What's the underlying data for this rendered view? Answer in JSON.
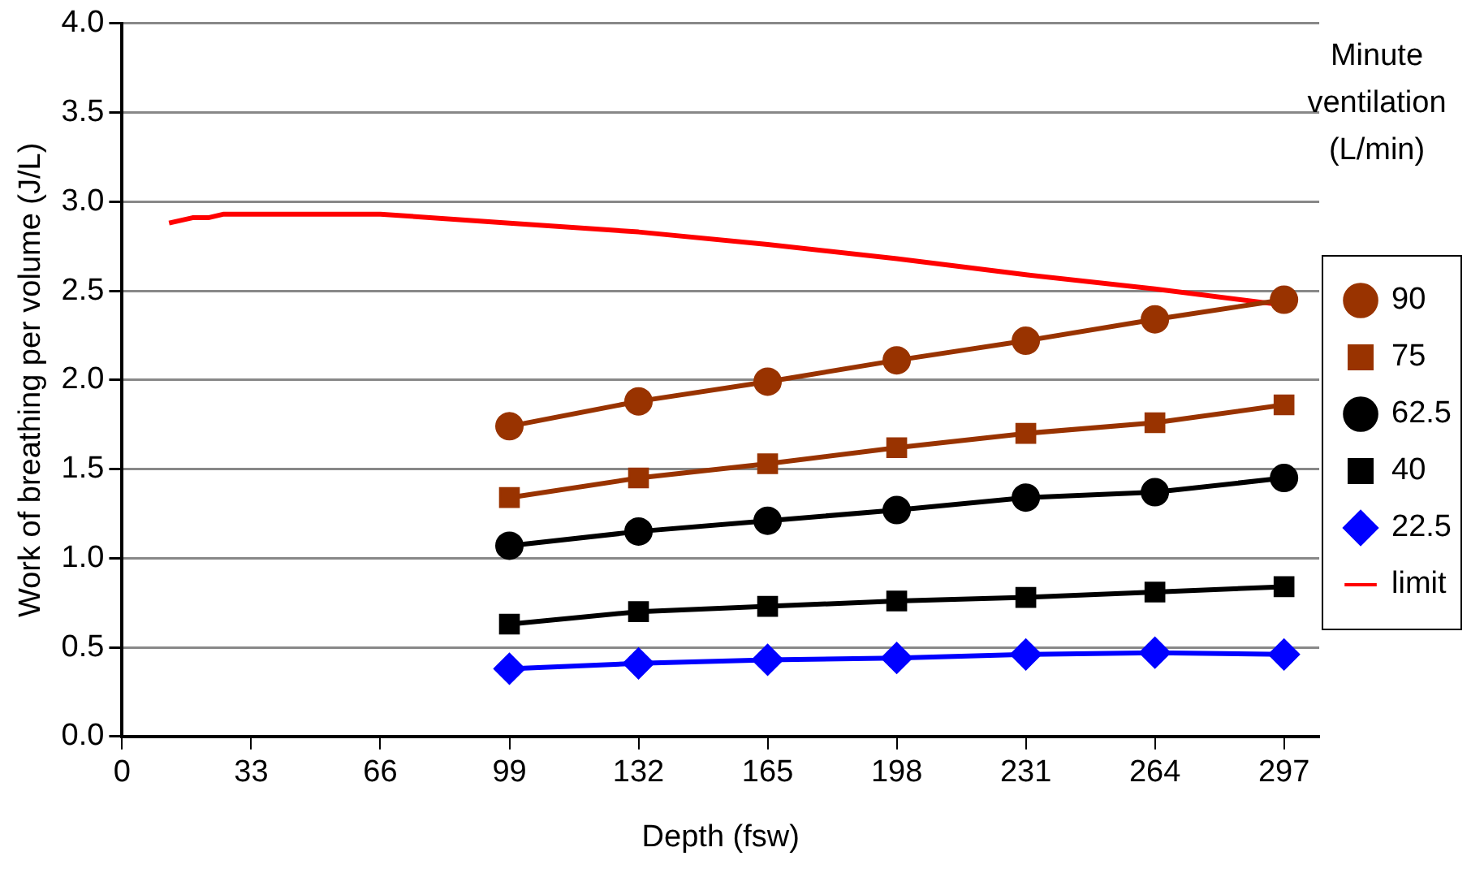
{
  "chart_data": {
    "type": "line",
    "xlabel": "Depth (fsw)",
    "ylabel": "Work of breathing per volume (J/L)",
    "legend_title": "Minute ventilation (L/min)",
    "legend": "right",
    "grid": "y",
    "line_style": "solid",
    "x": [
      99,
      132,
      165,
      198,
      231,
      264,
      297
    ],
    "xlim": [
      0,
      306
    ],
    "xticks": [
      0,
      33,
      66,
      99,
      132,
      165,
      198,
      231,
      264,
      297
    ],
    "ylim": [
      0,
      4
    ],
    "yticks": [
      {
        "value": 0,
        "label": "0.0"
      },
      {
        "value": 0.5,
        "label": "0.5"
      },
      {
        "value": 1,
        "label": "1.0"
      },
      {
        "value": 1.5,
        "label": "1.5"
      },
      {
        "value": 2,
        "label": "2.0"
      },
      {
        "value": 2.5,
        "label": "2.5"
      },
      {
        "value": 3,
        "label": "3.0"
      },
      {
        "value": 3.5,
        "label": "3.5"
      },
      {
        "value": 4,
        "label": "4.0"
      }
    ],
    "series": [
      {
        "name": "90",
        "color": "#993300",
        "marker": "circle",
        "values": [
          1.74,
          1.88,
          1.99,
          2.11,
          2.22,
          2.34,
          2.45
        ]
      },
      {
        "name": "75",
        "color": "#993300",
        "marker": "square",
        "values": [
          1.34,
          1.45,
          1.53,
          1.62,
          1.7,
          1.76,
          1.86
        ]
      },
      {
        "name": "62.5",
        "color": "#000000",
        "marker": "circle",
        "values": [
          1.07,
          1.15,
          1.21,
          1.27,
          1.34,
          1.37,
          1.45
        ]
      },
      {
        "name": "40",
        "color": "#000000",
        "marker": "square",
        "values": [
          0.63,
          0.7,
          0.73,
          0.76,
          0.78,
          0.81,
          0.84
        ]
      },
      {
        "name": "22.5",
        "color": "#0000ff",
        "marker": "diamond",
        "values": [
          0.38,
          0.41,
          0.43,
          0.44,
          0.46,
          0.47,
          0.46
        ]
      },
      {
        "name": "limit",
        "color": "#ff0000",
        "marker": "none",
        "x": [
          12,
          18,
          22,
          26,
          66,
          99,
          132,
          165,
          198,
          231,
          264,
          297
        ],
        "values": [
          2.88,
          2.91,
          2.91,
          2.93,
          2.93,
          2.88,
          2.83,
          2.76,
          2.68,
          2.59,
          2.51,
          2.42
        ]
      }
    ]
  }
}
